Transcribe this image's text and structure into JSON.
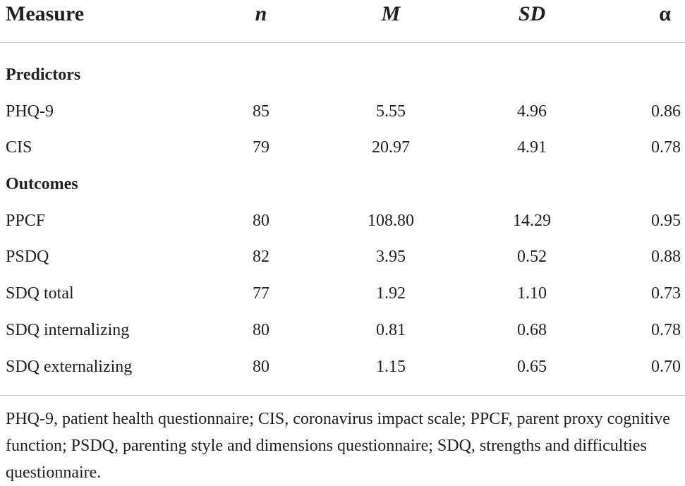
{
  "table": {
    "headers": {
      "measure": "Measure",
      "n": "n",
      "m": "M",
      "sd": "SD",
      "alpha": "α"
    },
    "sections": [
      {
        "title": "Predictors",
        "rows": [
          {
            "measure": "PHQ-9",
            "n": "85",
            "m": "5.55",
            "sd": "4.96",
            "alpha": "0.86"
          },
          {
            "measure": "CIS",
            "n": "79",
            "m": "20.97",
            "sd": "4.91",
            "alpha": "0.78"
          }
        ]
      },
      {
        "title": "Outcomes",
        "rows": [
          {
            "measure": "PPCF",
            "n": "80",
            "m": "108.80",
            "sd": "14.29",
            "alpha": "0.95"
          },
          {
            "measure": "PSDQ",
            "n": "82",
            "m": "3.95",
            "sd": "0.52",
            "alpha": "0.88"
          },
          {
            "measure": "SDQ total",
            "n": "77",
            "m": "1.92",
            "sd": "1.10",
            "alpha": "0.73"
          },
          {
            "measure": "SDQ internalizing",
            "n": "80",
            "m": "0.81",
            "sd": "0.68",
            "alpha": "0.78"
          },
          {
            "measure": "SDQ externalizing",
            "n": "80",
            "m": "1.15",
            "sd": "0.65",
            "alpha": "0.70"
          }
        ]
      }
    ],
    "footnote": "PHQ-9, patient health questionnaire; CIS, coronavirus impact scale; PPCF, parent proxy cognitive function; PSDQ, parenting style and dimensions questionnaire; SDQ, strengths and difficulties questionnaire."
  }
}
